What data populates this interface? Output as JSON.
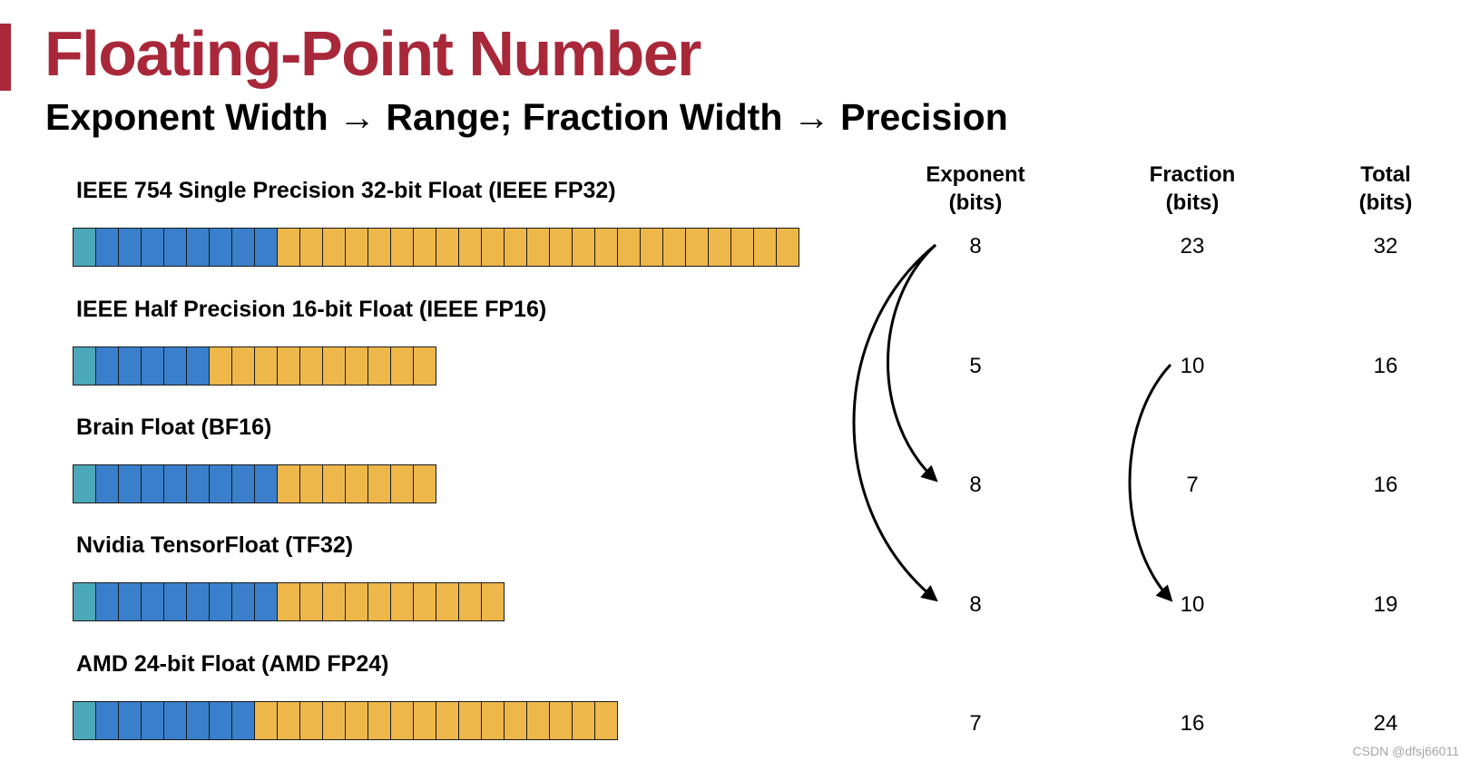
{
  "title": "Floating-Point Number",
  "subtitle": "Exponent Width → Range; Fraction Width → Precision",
  "colors": {
    "accent": "#a8283a",
    "sign_bit": "#4ba8b8",
    "exponent_bit": "#3a7fcc",
    "fraction_bit": "#edb74a",
    "arrow": "#000000"
  },
  "table": {
    "headers": {
      "exponent": [
        "Exponent",
        "(bits)"
      ],
      "fraction": [
        "Fraction",
        "(bits)"
      ],
      "total": [
        "Total",
        "(bits)"
      ]
    }
  },
  "formats": [
    {
      "label": "IEEE 754 Single Precision 32-bit Float (IEEE FP32)",
      "sign_bits": 1,
      "exponent": "8",
      "fraction": "23",
      "total": "32"
    },
    {
      "label": "IEEE Half Precision 16-bit Float (IEEE FP16)",
      "sign_bits": 1,
      "exponent": "5",
      "fraction": "10",
      "total": "16"
    },
    {
      "label": "Brain Float (BF16)",
      "sign_bits": 1,
      "exponent": "8",
      "fraction": "7",
      "total": "16"
    },
    {
      "label": "Nvidia TensorFloat (TF32)",
      "sign_bits": 1,
      "exponent": "8",
      "fraction": "10",
      "total": "19"
    },
    {
      "label": "AMD 24-bit Float (AMD FP24)",
      "sign_bits": 1,
      "exponent": "7",
      "fraction": "16",
      "total": "24"
    }
  ],
  "arrows": [
    {
      "column": "exponent",
      "from_row": 0,
      "to_row": 2
    },
    {
      "column": "exponent",
      "from_row": 0,
      "to_row": 3
    },
    {
      "column": "fraction",
      "from_row": 1,
      "to_row": 3
    }
  ],
  "watermark": "CSDN @dfsj66011"
}
